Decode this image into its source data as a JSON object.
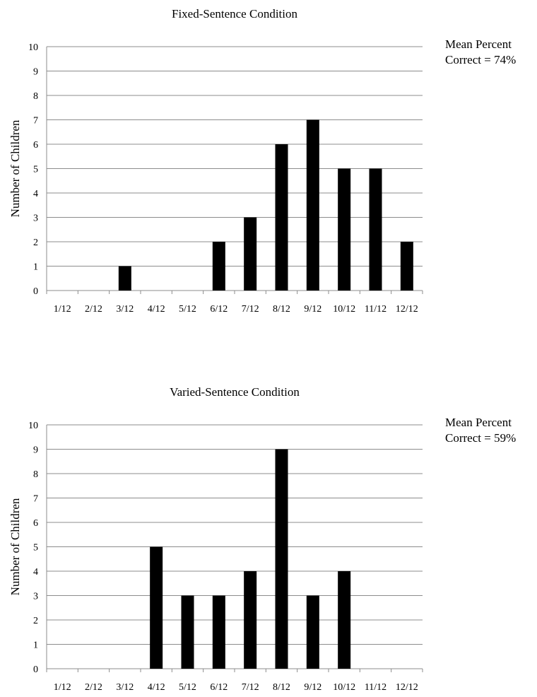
{
  "chart_data": [
    {
      "type": "bar",
      "title": "Fixed-Sentence Condition",
      "xlabel": "",
      "ylabel": "Number of Children",
      "ylim": [
        0,
        10
      ],
      "yticks": [
        0,
        1,
        2,
        3,
        4,
        5,
        6,
        7,
        8,
        9,
        10
      ],
      "grid": true,
      "categories": [
        "1/12",
        "2/12",
        "3/12",
        "4/12",
        "5/12",
        "6/12",
        "7/12",
        "8/12",
        "9/12",
        "10/12",
        "11/12",
        "12/12"
      ],
      "values": [
        0,
        0,
        1,
        0,
        0,
        2,
        3,
        6,
        7,
        5,
        5,
        2
      ],
      "bar_color": "#000000",
      "annotation": [
        "Mean Percent",
        "Correct = 74%"
      ]
    },
    {
      "type": "bar",
      "title": "Varied-Sentence Condition",
      "xlabel": "",
      "ylabel": "Number of Children",
      "ylim": [
        0,
        10
      ],
      "yticks": [
        0,
        1,
        2,
        3,
        4,
        5,
        6,
        7,
        8,
        9,
        10
      ],
      "grid": true,
      "categories": [
        "1/12",
        "2/12",
        "3/12",
        "4/12",
        "5/12",
        "6/12",
        "7/12",
        "8/12",
        "9/12",
        "10/12",
        "11/12",
        "12/12"
      ],
      "values": [
        0,
        0,
        0,
        5,
        3,
        3,
        4,
        9,
        3,
        4,
        0,
        0
      ],
      "bar_color": "#000000",
      "annotation": [
        "Mean Percent",
        "Correct = 59%"
      ]
    }
  ]
}
